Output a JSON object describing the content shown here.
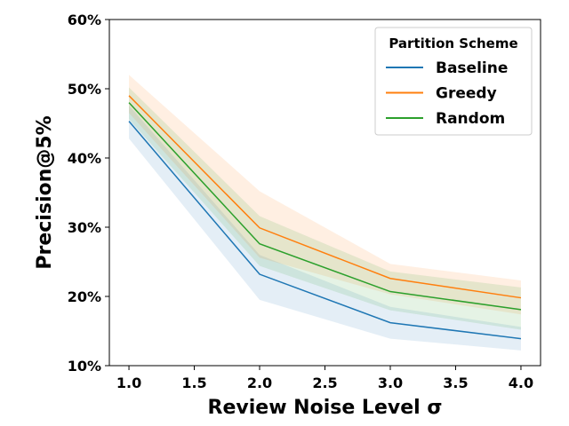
{
  "chart_data": {
    "type": "line",
    "title": "",
    "xlabel": "Review Noise Level σ",
    "ylabel": "Precision@5%",
    "x": [
      1.0,
      2.0,
      3.0,
      4.0
    ],
    "xlim": [
      0.85,
      4.15
    ],
    "ylim": [
      10,
      60
    ],
    "x_ticks": [
      1.0,
      1.5,
      2.0,
      2.5,
      3.0,
      3.5,
      4.0
    ],
    "x_tick_labels": [
      "1.0",
      "1.5",
      "2.0",
      "2.5",
      "3.0",
      "3.5",
      "4.0"
    ],
    "y_ticks": [
      10,
      20,
      30,
      40,
      50,
      60
    ],
    "y_tick_labels": [
      "10%",
      "20%",
      "30%",
      "40%",
      "50%",
      "60%"
    ],
    "grid": false,
    "legend": {
      "title": "Partition Scheme",
      "position": "upper right"
    },
    "series": [
      {
        "name": "Baseline",
        "color": "#1f77b4",
        "values": [
          45.3,
          23.2,
          16.2,
          13.9
        ],
        "lower": [
          42.8,
          19.5,
          13.9,
          12.2
        ],
        "upper": [
          47.6,
          26.0,
          18.5,
          15.6
        ]
      },
      {
        "name": "Greedy",
        "color": "#ff7f0e",
        "values": [
          49.0,
          29.9,
          22.6,
          19.8
        ],
        "lower": [
          46.5,
          25.6,
          20.3,
          17.4
        ],
        "upper": [
          52.0,
          35.2,
          24.7,
          22.3
        ]
      },
      {
        "name": "Random",
        "color": "#2ca02c",
        "values": [
          48.0,
          27.6,
          20.7,
          18.1
        ],
        "lower": [
          45.6,
          24.4,
          18.0,
          15.2
        ],
        "upper": [
          50.2,
          31.6,
          23.6,
          21.3
        ]
      }
    ]
  }
}
